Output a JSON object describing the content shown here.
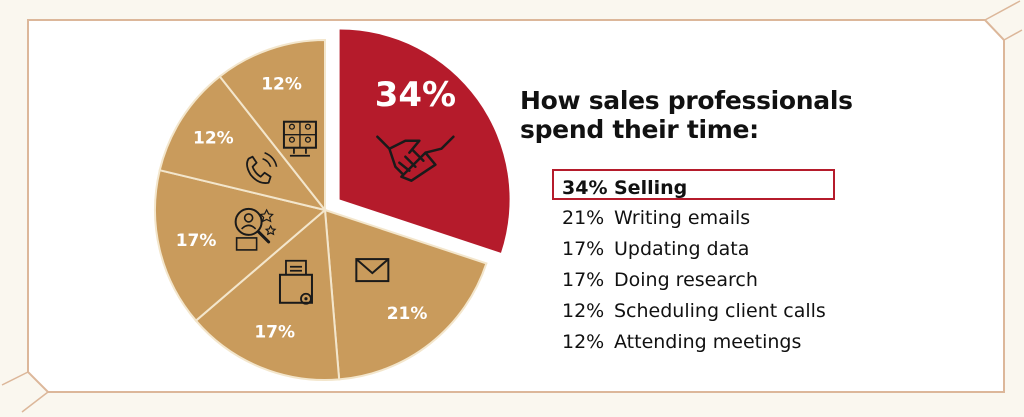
{
  "chart_data": {
    "type": "pie",
    "title": "How sales professionals spend their time:",
    "slices": [
      {
        "label": "Selling",
        "value": 34,
        "value_label": "34%",
        "color": "#b51b2b",
        "icon": "handshake-icon",
        "highlighted": true
      },
      {
        "label": "Writing emails",
        "value": 21,
        "value_label": "21%",
        "color": "#c99b5c",
        "icon": "envelope-icon",
        "highlighted": false
      },
      {
        "label": "Updating data",
        "value": 17,
        "value_label": "17%",
        "color": "#c99b5c",
        "icon": "document-gear-icon",
        "highlighted": false
      },
      {
        "label": "Doing research",
        "value": 17,
        "value_label": "17%",
        "color": "#c99b5c",
        "icon": "magnifier-profile-icon",
        "highlighted": false
      },
      {
        "label": "Scheduling client calls",
        "value": 12,
        "value_label": "12%",
        "color": "#c99b5c",
        "icon": "phone-icon",
        "highlighted": false
      },
      {
        "label": "Attending meetings",
        "value": 12,
        "value_label": "12%",
        "color": "#c99b5c",
        "icon": "video-meeting-icon",
        "highlighted": false
      }
    ]
  },
  "legend": {
    "items": [
      {
        "pct": "34%",
        "label": "Selling",
        "highlighted": true
      },
      {
        "pct": "21%",
        "label": "Writing emails",
        "highlighted": false
      },
      {
        "pct": "17%",
        "label": "Updating data",
        "highlighted": false
      },
      {
        "pct": "17%",
        "label": "Doing research",
        "highlighted": false
      },
      {
        "pct": "12%",
        "label": "Scheduling client calls",
        "highlighted": false
      },
      {
        "pct": "12%",
        "label": "Attending meetings",
        "highlighted": false
      }
    ]
  },
  "colors": {
    "accent": "#b51b2b",
    "slice_default": "#c99b5c",
    "slice_border": "#f3e6cc",
    "frame": "#dcb79a",
    "background": "#faf7ef"
  }
}
